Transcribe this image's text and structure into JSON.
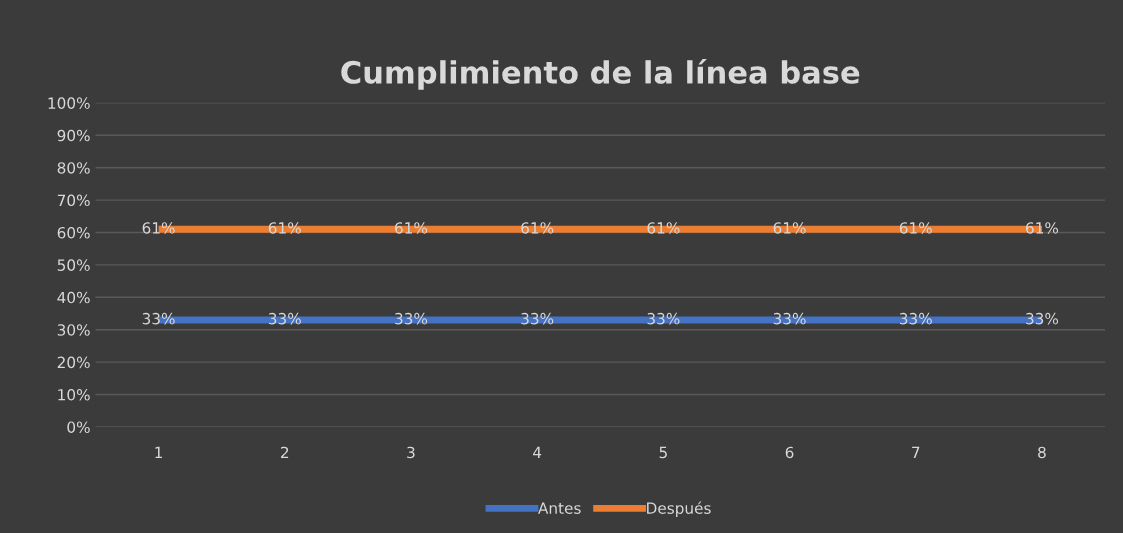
{
  "chart_data": {
    "type": "line",
    "title": "Cumplimiento de la línea base",
    "categories": [
      "1",
      "2",
      "3",
      "4",
      "5",
      "6",
      "7",
      "8"
    ],
    "series": [
      {
        "name": "Antes",
        "color": "#4472c4",
        "values": [
          33,
          33,
          33,
          33,
          33,
          33,
          33,
          33
        ],
        "value_labels": [
          "33%",
          "33%",
          "33%",
          "33%",
          "33%",
          "33%",
          "33%",
          "33%"
        ]
      },
      {
        "name": "Después",
        "color": "#ed7d31",
        "values": [
          61,
          61,
          61,
          61,
          61,
          61,
          61,
          61
        ],
        "value_labels": [
          "61%",
          "61%",
          "61%",
          "61%",
          "61%",
          "61%",
          "61%",
          "61%"
        ]
      }
    ],
    "ylim": [
      0,
      100
    ],
    "yticks": [
      {
        "value": 0,
        "label": "0%"
      },
      {
        "value": 10,
        "label": "10%"
      },
      {
        "value": 20,
        "label": "20%"
      },
      {
        "value": 30,
        "label": "30%"
      },
      {
        "value": 40,
        "label": "40%"
      },
      {
        "value": 50,
        "label": "50%"
      },
      {
        "value": 60,
        "label": "60%"
      },
      {
        "value": 70,
        "label": "70%"
      },
      {
        "value": 80,
        "label": "80%"
      },
      {
        "value": 90,
        "label": "90%"
      },
      {
        "value": 100,
        "label": "100%"
      }
    ],
    "grid": "y",
    "legend": "bottom",
    "marker": "none",
    "line_style": "solid"
  }
}
